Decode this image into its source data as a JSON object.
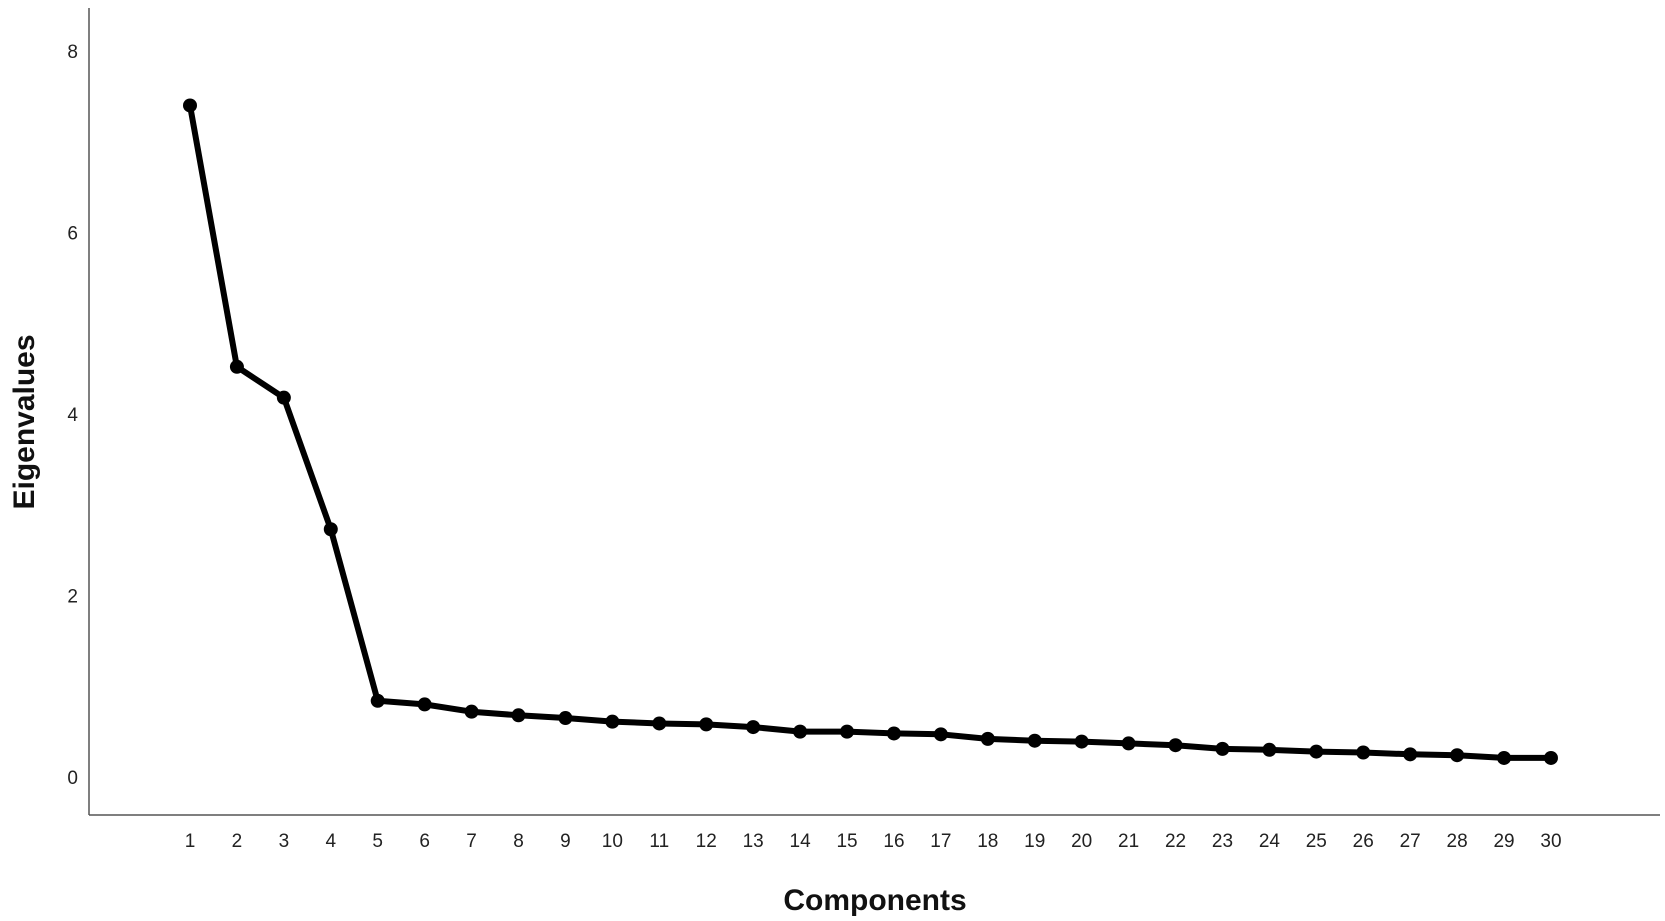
{
  "chart_data": {
    "type": "line",
    "title": "",
    "xlabel": "Components",
    "ylabel": "Eigenvalues",
    "x": [
      1,
      2,
      3,
      4,
      5,
      6,
      7,
      8,
      9,
      10,
      11,
      12,
      13,
      14,
      15,
      16,
      17,
      18,
      19,
      20,
      21,
      22,
      23,
      24,
      25,
      26,
      27,
      28,
      29,
      30
    ],
    "series": [
      {
        "values": [
          7.4,
          4.52,
          4.18,
          2.73,
          0.84,
          0.8,
          0.72,
          0.68,
          0.65,
          0.61,
          0.59,
          0.58,
          0.55,
          0.5,
          0.5,
          0.48,
          0.47,
          0.42,
          0.4,
          0.39,
          0.37,
          0.35,
          0.31,
          0.3,
          0.28,
          0.27,
          0.25,
          0.24,
          0.21,
          0.21
        ],
        "color": "#000000"
      }
    ],
    "y_ticks": [
      0,
      2,
      4,
      6,
      8
    ],
    "ylim": [
      -0.42,
      8.5
    ],
    "grid": false,
    "legend": "none"
  }
}
